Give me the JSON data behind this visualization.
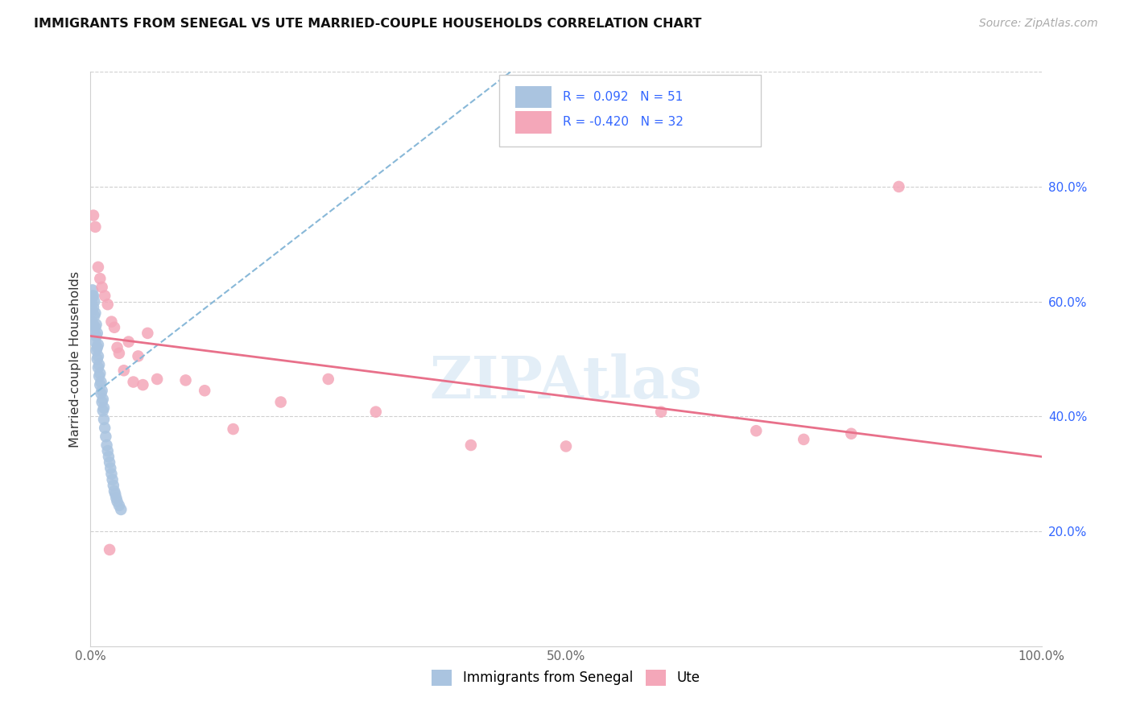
{
  "title": "IMMIGRANTS FROM SENEGAL VS UTE MARRIED-COUPLE HOUSEHOLDS CORRELATION CHART",
  "source": "Source: ZipAtlas.com",
  "ylabel": "Married-couple Households",
  "legend_label1": "Immigrants from Senegal",
  "legend_label2": "Ute",
  "R1": 0.092,
  "N1": 51,
  "R2": -0.42,
  "N2": 32,
  "color1": "#aac4e0",
  "color2": "#f4a7b9",
  "line_color1": "#88b8d8",
  "line_color2": "#e8708a",
  "xlim": [
    0.0,
    1.0
  ],
  "ylim": [
    0.0,
    1.0
  ],
  "xticks": [
    0.0,
    0.1,
    0.2,
    0.3,
    0.4,
    0.5,
    0.6,
    0.7,
    0.8,
    0.9,
    1.0
  ],
  "xtick_labels": [
    "0.0%",
    "",
    "",
    "",
    "",
    "50.0%",
    "",
    "",
    "",
    "",
    "100.0%"
  ],
  "yticks_right": [
    0.2,
    0.4,
    0.6,
    0.8
  ],
  "ytick_labels_right": [
    "20.0%",
    "40.0%",
    "60.0%",
    "80.0%"
  ],
  "watermark": "ZIPAtlas",
  "blue_x": [
    0.001,
    0.001,
    0.002,
    0.002,
    0.002,
    0.003,
    0.003,
    0.003,
    0.004,
    0.004,
    0.004,
    0.005,
    0.005,
    0.005,
    0.006,
    0.006,
    0.006,
    0.007,
    0.007,
    0.007,
    0.008,
    0.008,
    0.008,
    0.009,
    0.009,
    0.01,
    0.01,
    0.011,
    0.011,
    0.012,
    0.012,
    0.013,
    0.013,
    0.014,
    0.014,
    0.015,
    0.016,
    0.017,
    0.018,
    0.019,
    0.02,
    0.021,
    0.022,
    0.023,
    0.024,
    0.025,
    0.026,
    0.027,
    0.028,
    0.03,
    0.032
  ],
  "blue_y": [
    0.565,
    0.6,
    0.585,
    0.61,
    0.62,
    0.56,
    0.59,
    0.61,
    0.545,
    0.575,
    0.6,
    0.53,
    0.555,
    0.58,
    0.515,
    0.54,
    0.56,
    0.5,
    0.52,
    0.545,
    0.485,
    0.505,
    0.525,
    0.47,
    0.49,
    0.455,
    0.475,
    0.44,
    0.46,
    0.425,
    0.445,
    0.41,
    0.43,
    0.395,
    0.415,
    0.38,
    0.365,
    0.35,
    0.34,
    0.33,
    0.32,
    0.31,
    0.3,
    0.29,
    0.28,
    0.27,
    0.265,
    0.258,
    0.252,
    0.245,
    0.238
  ],
  "pink_x": [
    0.003,
    0.005,
    0.008,
    0.01,
    0.012,
    0.015,
    0.018,
    0.022,
    0.025,
    0.028,
    0.03,
    0.035,
    0.04,
    0.045,
    0.05,
    0.055,
    0.06,
    0.07,
    0.1,
    0.12,
    0.15,
    0.2,
    0.25,
    0.3,
    0.4,
    0.5,
    0.6,
    0.7,
    0.75,
    0.8,
    0.02,
    0.85
  ],
  "pink_y": [
    0.75,
    0.73,
    0.66,
    0.64,
    0.625,
    0.61,
    0.595,
    0.565,
    0.555,
    0.52,
    0.51,
    0.48,
    0.53,
    0.46,
    0.505,
    0.455,
    0.545,
    0.465,
    0.463,
    0.445,
    0.378,
    0.425,
    0.465,
    0.408,
    0.35,
    0.348,
    0.408,
    0.375,
    0.36,
    0.37,
    0.168,
    0.8
  ]
}
